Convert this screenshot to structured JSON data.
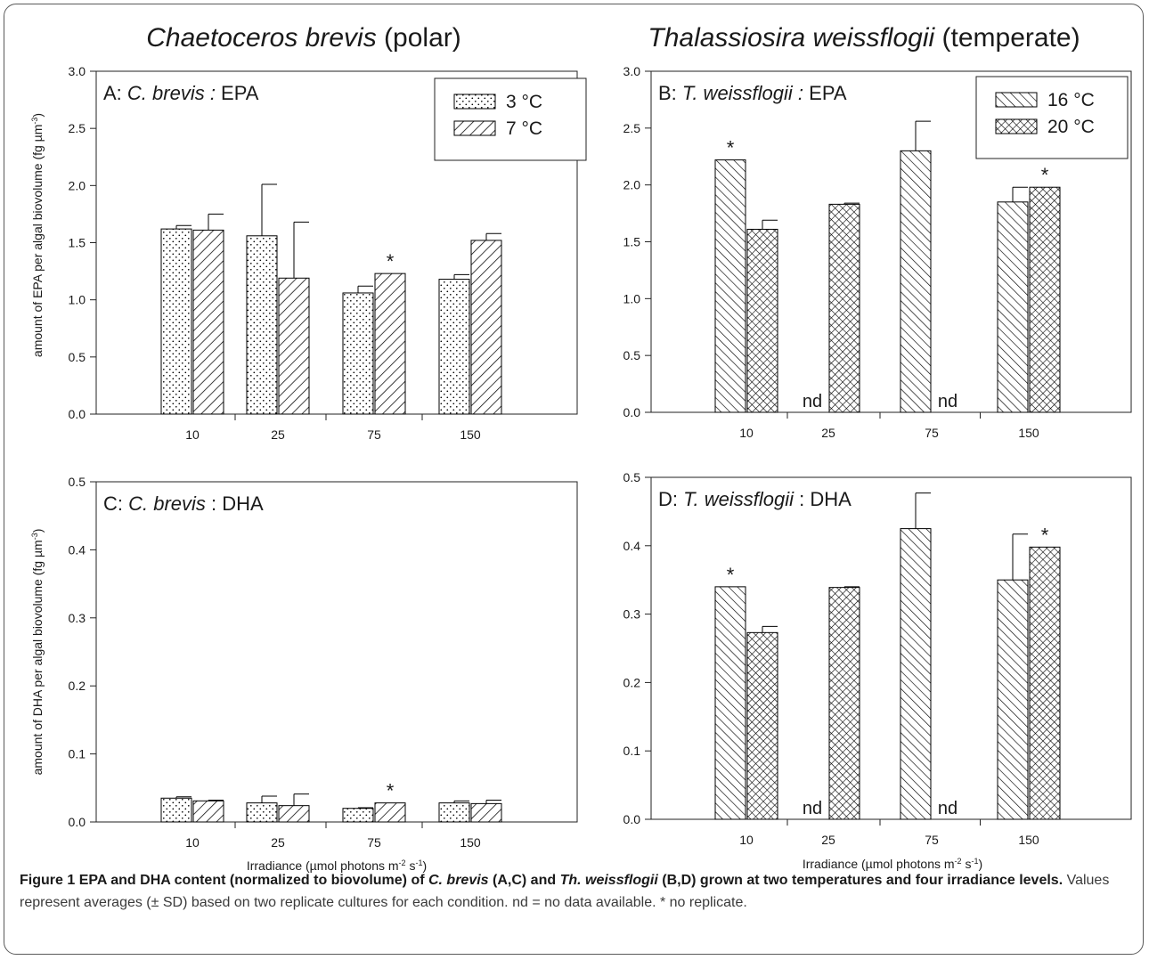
{
  "figure": {
    "columns": [
      {
        "species": "Chaetoceros brevis",
        "suffix": "(polar)"
      },
      {
        "species": "Thalassiosira weissflogii",
        "suffix": "(temperate)"
      }
    ],
    "y_label_epa": "amount of EPA per algal biovolume (fg µm",
    "y_label_dha": "amount of DHA per algal biovolume (fg µm",
    "y_label_exp": "-3",
    "x_label_prefix": "Irradiance (µmol photons m",
    "x_label_exp1": "-2",
    "x_label_mid": " s",
    "x_label_exp2": "-1",
    "x_label_end": ")",
    "nd_label": "nd",
    "star_label": "*"
  },
  "chart_data": [
    {
      "type": "bar",
      "id": "A",
      "panel_label_letter": "A:",
      "panel_label_species": "C. brevis :",
      "panel_label_fa": "EPA",
      "categories": [
        "10",
        "25",
        "75",
        "150"
      ],
      "ylim": [
        0,
        3.0
      ],
      "yticks": [
        "0.0",
        "0.5",
        "1.0",
        "1.5",
        "2.0",
        "2.5",
        "3.0"
      ],
      "legend": "top-right",
      "series": [
        {
          "name": "3 °C",
          "pattern": "dots",
          "values": [
            1.62,
            1.56,
            1.06,
            1.18
          ],
          "errors": [
            0.03,
            0.45,
            0.06,
            0.04
          ],
          "stars": [
            false,
            false,
            false,
            false
          ]
        },
        {
          "name": "7 °C",
          "pattern": "diag-right",
          "values": [
            1.61,
            1.19,
            1.23,
            1.52
          ],
          "errors": [
            0.14,
            0.49,
            0,
            0.06
          ],
          "stars": [
            false,
            false,
            true,
            false
          ]
        }
      ]
    },
    {
      "type": "bar",
      "id": "B",
      "panel_label_letter": "B:",
      "panel_label_species": "T. weissflogii :",
      "panel_label_fa": "EPA",
      "categories": [
        "10",
        "25",
        "75",
        "150"
      ],
      "ylim": [
        0,
        3.0
      ],
      "yticks": [
        "0.0",
        "0.5",
        "1.0",
        "1.5",
        "2.0",
        "2.5",
        "3.0"
      ],
      "legend": "top-right",
      "series": [
        {
          "name": "16 °C",
          "pattern": "diag-left",
          "values": [
            2.22,
            null,
            2.3,
            1.85
          ],
          "errors": [
            0,
            0,
            0.26,
            0.13
          ],
          "stars": [
            true,
            false,
            false,
            false
          ]
        },
        {
          "name": "20 °C",
          "pattern": "cross",
          "values": [
            1.61,
            1.83,
            null,
            1.98
          ],
          "errors": [
            0.08,
            0.01,
            0,
            0
          ],
          "stars": [
            false,
            false,
            false,
            true
          ]
        }
      ]
    },
    {
      "type": "bar",
      "id": "C",
      "panel_label_letter": "C:",
      "panel_label_species": "C. brevis",
      "panel_label_fa": ": DHA",
      "categories": [
        "10",
        "25",
        "75",
        "150"
      ],
      "ylim": [
        0,
        0.5
      ],
      "yticks": [
        "0.0",
        "0.1",
        "0.2",
        "0.3",
        "0.4",
        "0.5"
      ],
      "legend": "none",
      "series": [
        {
          "name": "3 °C",
          "pattern": "dots",
          "values": [
            0.035,
            0.028,
            0.02,
            0.028
          ],
          "errors": [
            0.002,
            0.01,
            0.001,
            0.003
          ],
          "stars": [
            false,
            false,
            false,
            false
          ]
        },
        {
          "name": "7 °C",
          "pattern": "diag-right",
          "values": [
            0.031,
            0.024,
            0.028,
            0.027
          ],
          "errors": [
            0.001,
            0.017,
            0,
            0.005
          ],
          "stars": [
            false,
            false,
            true,
            false
          ]
        }
      ]
    },
    {
      "type": "bar",
      "id": "D",
      "panel_label_letter": "D:",
      "panel_label_species": "T. weissflogii",
      "panel_label_fa": ": DHA",
      "categories": [
        "10",
        "25",
        "75",
        "150"
      ],
      "ylim": [
        0,
        0.5
      ],
      "yticks": [
        "0.0",
        "0.1",
        "0.2",
        "0.3",
        "0.4",
        "0.5"
      ],
      "legend": "none",
      "series": [
        {
          "name": "16 °C",
          "pattern": "diag-left",
          "values": [
            0.34,
            null,
            0.425,
            0.35
          ],
          "errors": [
            0,
            0,
            0.052,
            0.067
          ],
          "stars": [
            true,
            false,
            false,
            false
          ]
        },
        {
          "name": "20 °C",
          "pattern": "cross",
          "values": [
            0.273,
            0.339,
            null,
            0.398
          ],
          "errors": [
            0.009,
            0.001,
            0,
            0
          ],
          "stars": [
            false,
            false,
            false,
            true
          ]
        }
      ]
    }
  ],
  "caption": {
    "figure_label": "Figure 1",
    "title_part1": "EPA and DHA content (normalized to biovolume) of ",
    "title_cb": "C. brevis",
    "title_part2": " (A,C) and ",
    "title_tw": "Th. weissflogii",
    "title_part3": " (B,D) grown at two temperatures and four irradiance levels.",
    "body": " Values represent averages (± SD) based on two replicate cultures for each condition. nd = no data available. * no replicate."
  }
}
